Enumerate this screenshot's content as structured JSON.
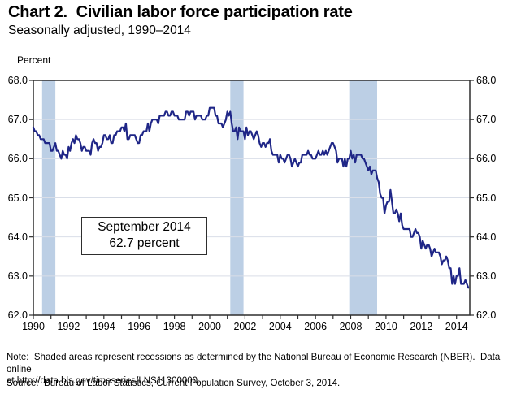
{
  "chart_data": {
    "type": "line",
    "title": "Chart 2.  Civilian labor force participation rate",
    "subtitle": "Seasonally adjusted, 1990–2014",
    "unit_label": "Percent",
    "x_range": [
      1990,
      2014.75
    ],
    "y_range": [
      62.0,
      68.0
    ],
    "y_ticks": [
      62,
      63,
      64,
      65,
      66,
      67,
      68
    ],
    "x_ticks_labeled": [
      1990,
      1992,
      1994,
      1996,
      1998,
      2000,
      2002,
      2004,
      2006,
      2008,
      2010,
      2012,
      2014
    ],
    "x_minor_tick_interval": 1,
    "grid": "horizontal-only",
    "legend": "none",
    "recessions": [
      {
        "start": 1990.5,
        "end": 1991.25
      },
      {
        "start": 2001.167,
        "end": 2001.917
      },
      {
        "start": 2007.917,
        "end": 2009.5
      }
    ],
    "annotation": {
      "line1": "September 2014",
      "line2": "62.7 percent"
    },
    "colors": {
      "line": "#1f2687",
      "recession_band": "#bccfe5",
      "gridline": "#d9dee8",
      "axis": "#2e2e2e",
      "text": "#000000",
      "background": "#ffffff"
    },
    "series": [
      {
        "name": "Civilian labor force participation rate",
        "frequency": "monthly",
        "start_year": 1990,
        "end_label": "September 2014",
        "values": [
          66.8,
          66.7,
          66.7,
          66.6,
          66.6,
          66.5,
          66.5,
          66.5,
          66.4,
          66.4,
          66.4,
          66.4,
          66.2,
          66.2,
          66.3,
          66.4,
          66.2,
          66.2,
          66.1,
          66.0,
          66.2,
          66.1,
          66.1,
          66.0,
          66.3,
          66.2,
          66.4,
          66.5,
          66.4,
          66.6,
          66.5,
          66.5,
          66.4,
          66.2,
          66.3,
          66.3,
          66.2,
          66.2,
          66.2,
          66.1,
          66.4,
          66.5,
          66.4,
          66.4,
          66.2,
          66.3,
          66.3,
          66.4,
          66.6,
          66.6,
          66.5,
          66.5,
          66.6,
          66.4,
          66.4,
          66.6,
          66.6,
          66.7,
          66.7,
          66.7,
          66.8,
          66.8,
          66.7,
          66.9,
          66.5,
          66.5,
          66.6,
          66.6,
          66.6,
          66.6,
          66.5,
          66.4,
          66.4,
          66.6,
          66.6,
          66.7,
          66.7,
          66.7,
          66.9,
          66.7,
          66.9,
          67.0,
          67.0,
          67.0,
          67.0,
          66.9,
          67.1,
          67.1,
          67.1,
          67.1,
          67.2,
          67.2,
          67.1,
          67.1,
          67.2,
          67.2,
          67.1,
          67.1,
          67.1,
          67.0,
          67.0,
          67.0,
          67.0,
          67.0,
          67.2,
          67.2,
          67.1,
          67.2,
          67.2,
          67.2,
          67.0,
          67.1,
          67.1,
          67.1,
          67.1,
          67.0,
          67.0,
          67.0,
          67.1,
          67.1,
          67.3,
          67.3,
          67.3,
          67.3,
          67.1,
          67.1,
          66.9,
          66.9,
          66.9,
          66.8,
          66.9,
          67.0,
          67.2,
          67.1,
          67.2,
          66.9,
          66.7,
          66.7,
          66.8,
          66.5,
          66.8,
          66.7,
          66.7,
          66.7,
          66.5,
          66.8,
          66.6,
          66.7,
          66.7,
          66.6,
          66.5,
          66.6,
          66.7,
          66.6,
          66.4,
          66.3,
          66.4,
          66.4,
          66.3,
          66.4,
          66.4,
          66.5,
          66.2,
          66.1,
          66.1,
          66.1,
          66.1,
          65.9,
          66.1,
          66.0,
          66.0,
          65.9,
          66.0,
          66.1,
          66.1,
          66.0,
          65.8,
          65.9,
          66.0,
          65.9,
          65.8,
          65.9,
          65.9,
          66.1,
          66.1,
          66.1,
          66.1,
          66.2,
          66.1,
          66.1,
          66.0,
          66.0,
          66.0,
          66.1,
          66.2,
          66.1,
          66.1,
          66.2,
          66.1,
          66.2,
          66.1,
          66.2,
          66.3,
          66.4,
          66.4,
          66.3,
          66.2,
          65.9,
          66.0,
          66.0,
          66.0,
          65.8,
          66.0,
          65.8,
          66.0,
          66.0,
          66.2,
          66.0,
          66.1,
          65.9,
          66.1,
          66.1,
          66.1,
          66.1,
          66.0,
          66.0,
          65.9,
          65.8,
          65.7,
          65.8,
          65.6,
          65.7,
          65.7,
          65.7,
          65.5,
          65.4,
          65.1,
          65.0,
          65.0,
          64.6,
          64.8,
          64.9,
          64.9,
          65.2,
          64.9,
          64.6,
          64.6,
          64.7,
          64.6,
          64.4,
          64.6,
          64.3,
          64.2,
          64.2,
          64.2,
          64.2,
          64.2,
          64.0,
          64.0,
          64.1,
          64.2,
          64.1,
          64.1,
          64.0,
          63.7,
          63.9,
          63.8,
          63.7,
          63.8,
          63.8,
          63.7,
          63.5,
          63.6,
          63.7,
          63.6,
          63.6,
          63.6,
          63.5,
          63.3,
          63.4,
          63.4,
          63.5,
          63.4,
          63.2,
          63.2,
          62.8,
          63.0,
          62.8,
          63.0,
          63.0,
          63.2,
          62.8,
          62.8,
          62.8,
          62.9,
          62.8,
          62.7
        ]
      }
    ]
  },
  "footer": {
    "note": "Note:  Shaded areas represent recessions as determined by the National Bureau of Economic Research (NBER).  Data online\nat http://data.bls.gov/timeseries/LNS11300000.",
    "source": "Source:  Bureau of Labor Statistics, Current Population Survey, October 3, 2014."
  }
}
